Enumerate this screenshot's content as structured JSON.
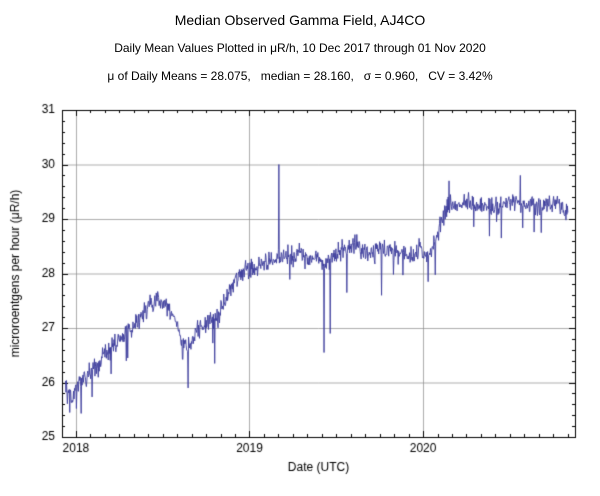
{
  "chart_data": {
    "type": "line",
    "title": "Median Observed Gamma Field, AJ4CO",
    "subtitle": "Daily Mean Values Plotted in μR/h, 10 Dec 2017 through 01 Nov 2020",
    "stats_line": "μ of Daily Means = 28.075,   median = 28.160,   σ = 0.960,   CV = 3.42%",
    "xlabel": "Date (UTC)",
    "ylabel": "microroentgens per hour (μR/h)",
    "xlim": [
      2017.92,
      2020.875
    ],
    "ylim": [
      25,
      31
    ],
    "yticks": [
      25,
      26,
      27,
      28,
      29,
      30,
      31
    ],
    "xticks": [
      {
        "value": 2018,
        "label": "2018"
      },
      {
        "value": 2019,
        "label": "2019"
      },
      {
        "value": 2020,
        "label": "2020"
      }
    ],
    "grid": true,
    "legend": "none",
    "line_color": "#3c3c9c",
    "grid_color": "#8a8a8a",
    "frame_color": "#000000",
    "stats": {
      "mean_of_daily_means": 28.075,
      "median": 28.16,
      "sigma": 0.96,
      "cv_percent": 3.42
    },
    "series": [
      {
        "name": "daily-mean-gamma-field",
        "anchors": [
          [
            2017.94,
            26.0
          ],
          [
            2017.96,
            25.8
          ],
          [
            2017.98,
            25.6
          ],
          [
            2018.0,
            25.95
          ],
          [
            2018.03,
            26.05
          ],
          [
            2018.06,
            26.1
          ],
          [
            2018.1,
            26.25
          ],
          [
            2018.13,
            26.2
          ],
          [
            2018.16,
            26.55
          ],
          [
            2018.2,
            26.6
          ],
          [
            2018.24,
            26.75
          ],
          [
            2018.28,
            26.9
          ],
          [
            2018.32,
            26.95
          ],
          [
            2018.36,
            27.15
          ],
          [
            2018.4,
            27.3
          ],
          [
            2018.44,
            27.45
          ],
          [
            2018.48,
            27.55
          ],
          [
            2018.52,
            27.4
          ],
          [
            2018.56,
            27.25
          ],
          [
            2018.6,
            26.9
          ],
          [
            2018.63,
            26.65
          ],
          [
            2018.66,
            26.7
          ],
          [
            2018.7,
            26.95
          ],
          [
            2018.74,
            27.1
          ],
          [
            2018.78,
            27.15
          ],
          [
            2018.82,
            27.2
          ],
          [
            2018.86,
            27.5
          ],
          [
            2018.9,
            27.75
          ],
          [
            2018.94,
            27.95
          ],
          [
            2018.98,
            28.05
          ],
          [
            2019.02,
            28.1
          ],
          [
            2019.06,
            28.15
          ],
          [
            2019.1,
            28.2
          ],
          [
            2019.14,
            28.25
          ],
          [
            2019.18,
            28.3
          ],
          [
            2019.22,
            28.35
          ],
          [
            2019.26,
            28.3
          ],
          [
            2019.3,
            28.4
          ],
          [
            2019.34,
            28.3
          ],
          [
            2019.38,
            28.25
          ],
          [
            2019.42,
            28.2
          ],
          [
            2019.46,
            28.25
          ],
          [
            2019.5,
            28.35
          ],
          [
            2019.54,
            28.45
          ],
          [
            2019.58,
            28.5
          ],
          [
            2019.62,
            28.55
          ],
          [
            2019.66,
            28.4
          ],
          [
            2019.7,
            28.35
          ],
          [
            2019.74,
            28.45
          ],
          [
            2019.78,
            28.4
          ],
          [
            2019.82,
            28.45
          ],
          [
            2019.86,
            28.35
          ],
          [
            2019.9,
            28.4
          ],
          [
            2019.94,
            28.3
          ],
          [
            2019.98,
            28.45
          ],
          [
            2020.02,
            28.3
          ],
          [
            2020.06,
            28.5
          ],
          [
            2020.1,
            28.9
          ],
          [
            2020.14,
            29.2
          ],
          [
            2020.18,
            29.3
          ],
          [
            2020.22,
            29.25
          ],
          [
            2020.26,
            29.3
          ],
          [
            2020.3,
            29.25
          ],
          [
            2020.34,
            29.3
          ],
          [
            2020.38,
            29.2
          ],
          [
            2020.42,
            29.25
          ],
          [
            2020.46,
            29.3
          ],
          [
            2020.5,
            29.35
          ],
          [
            2020.54,
            29.3
          ],
          [
            2020.58,
            29.25
          ],
          [
            2020.62,
            29.3
          ],
          [
            2020.66,
            29.2
          ],
          [
            2020.7,
            29.3
          ],
          [
            2020.74,
            29.25
          ],
          [
            2020.78,
            29.3
          ],
          [
            2020.81,
            29.2
          ],
          [
            2020.835,
            29.1
          ]
        ],
        "spike_events": [
          [
            2017.965,
            25.45
          ],
          [
            2018.3,
            26.45
          ],
          [
            2018.645,
            25.9
          ],
          [
            2018.8,
            26.35
          ],
          [
            2019.17,
            30.0
          ],
          [
            2019.43,
            26.55
          ],
          [
            2019.465,
            26.9
          ],
          [
            2019.56,
            27.65
          ],
          [
            2019.76,
            27.6
          ],
          [
            2020.03,
            27.85
          ],
          [
            2020.15,
            29.7
          ],
          [
            2020.45,
            28.65
          ],
          [
            2020.56,
            29.8
          ],
          [
            2020.68,
            28.75
          ]
        ],
        "noise_sd": 0.09,
        "dip_probability": 0.018
      }
    ]
  }
}
